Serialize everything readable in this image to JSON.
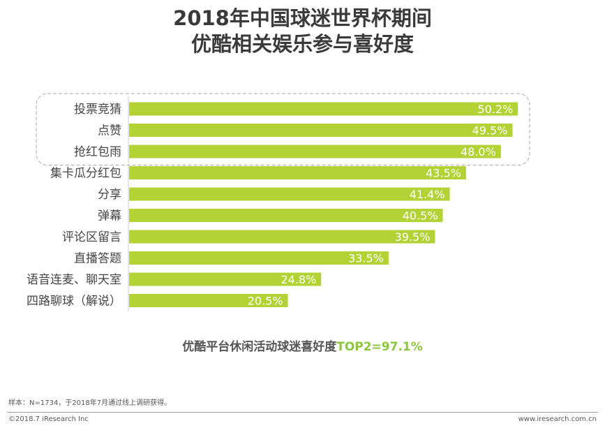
{
  "chart_data": {
    "type": "bar",
    "orientation": "horizontal",
    "title": "2018年中国球迷世界杯期间\n优酷相关娱乐参与喜好度",
    "title_lines": [
      "2018年中国球迷世界杯期间",
      "优酷相关娱乐参与喜好度"
    ],
    "categories": [
      "投票竞猜",
      "点赞",
      "抢红包雨",
      "集卡瓜分红包",
      "分享",
      "弹幕",
      "评论区留言",
      "直播答题",
      "语音连麦、聊天室",
      "四路聊球（解说）"
    ],
    "values": [
      50.2,
      49.5,
      48.0,
      43.5,
      41.4,
      40.5,
      39.5,
      33.5,
      24.8,
      20.5
    ],
    "value_labels": [
      "50.2%",
      "49.5%",
      "48.0%",
      "43.5%",
      "41.4%",
      "40.5%",
      "39.5%",
      "33.5%",
      "24.8%",
      "20.5%"
    ],
    "highlighted_top": 3,
    "bar_color": "#b2d235",
    "grid": false
  },
  "summary": {
    "text": "优酷平台休闲活动球迷喜好度",
    "highlight": "TOP2=97.1%",
    "highlight_color": "#8cc63f"
  },
  "footer": {
    "note": "样本：N=1734，于2018年7月通过线上调研获得。",
    "copyright": "©2018.7 iResearch Inc",
    "website": "www.iresearch.com.cn"
  }
}
